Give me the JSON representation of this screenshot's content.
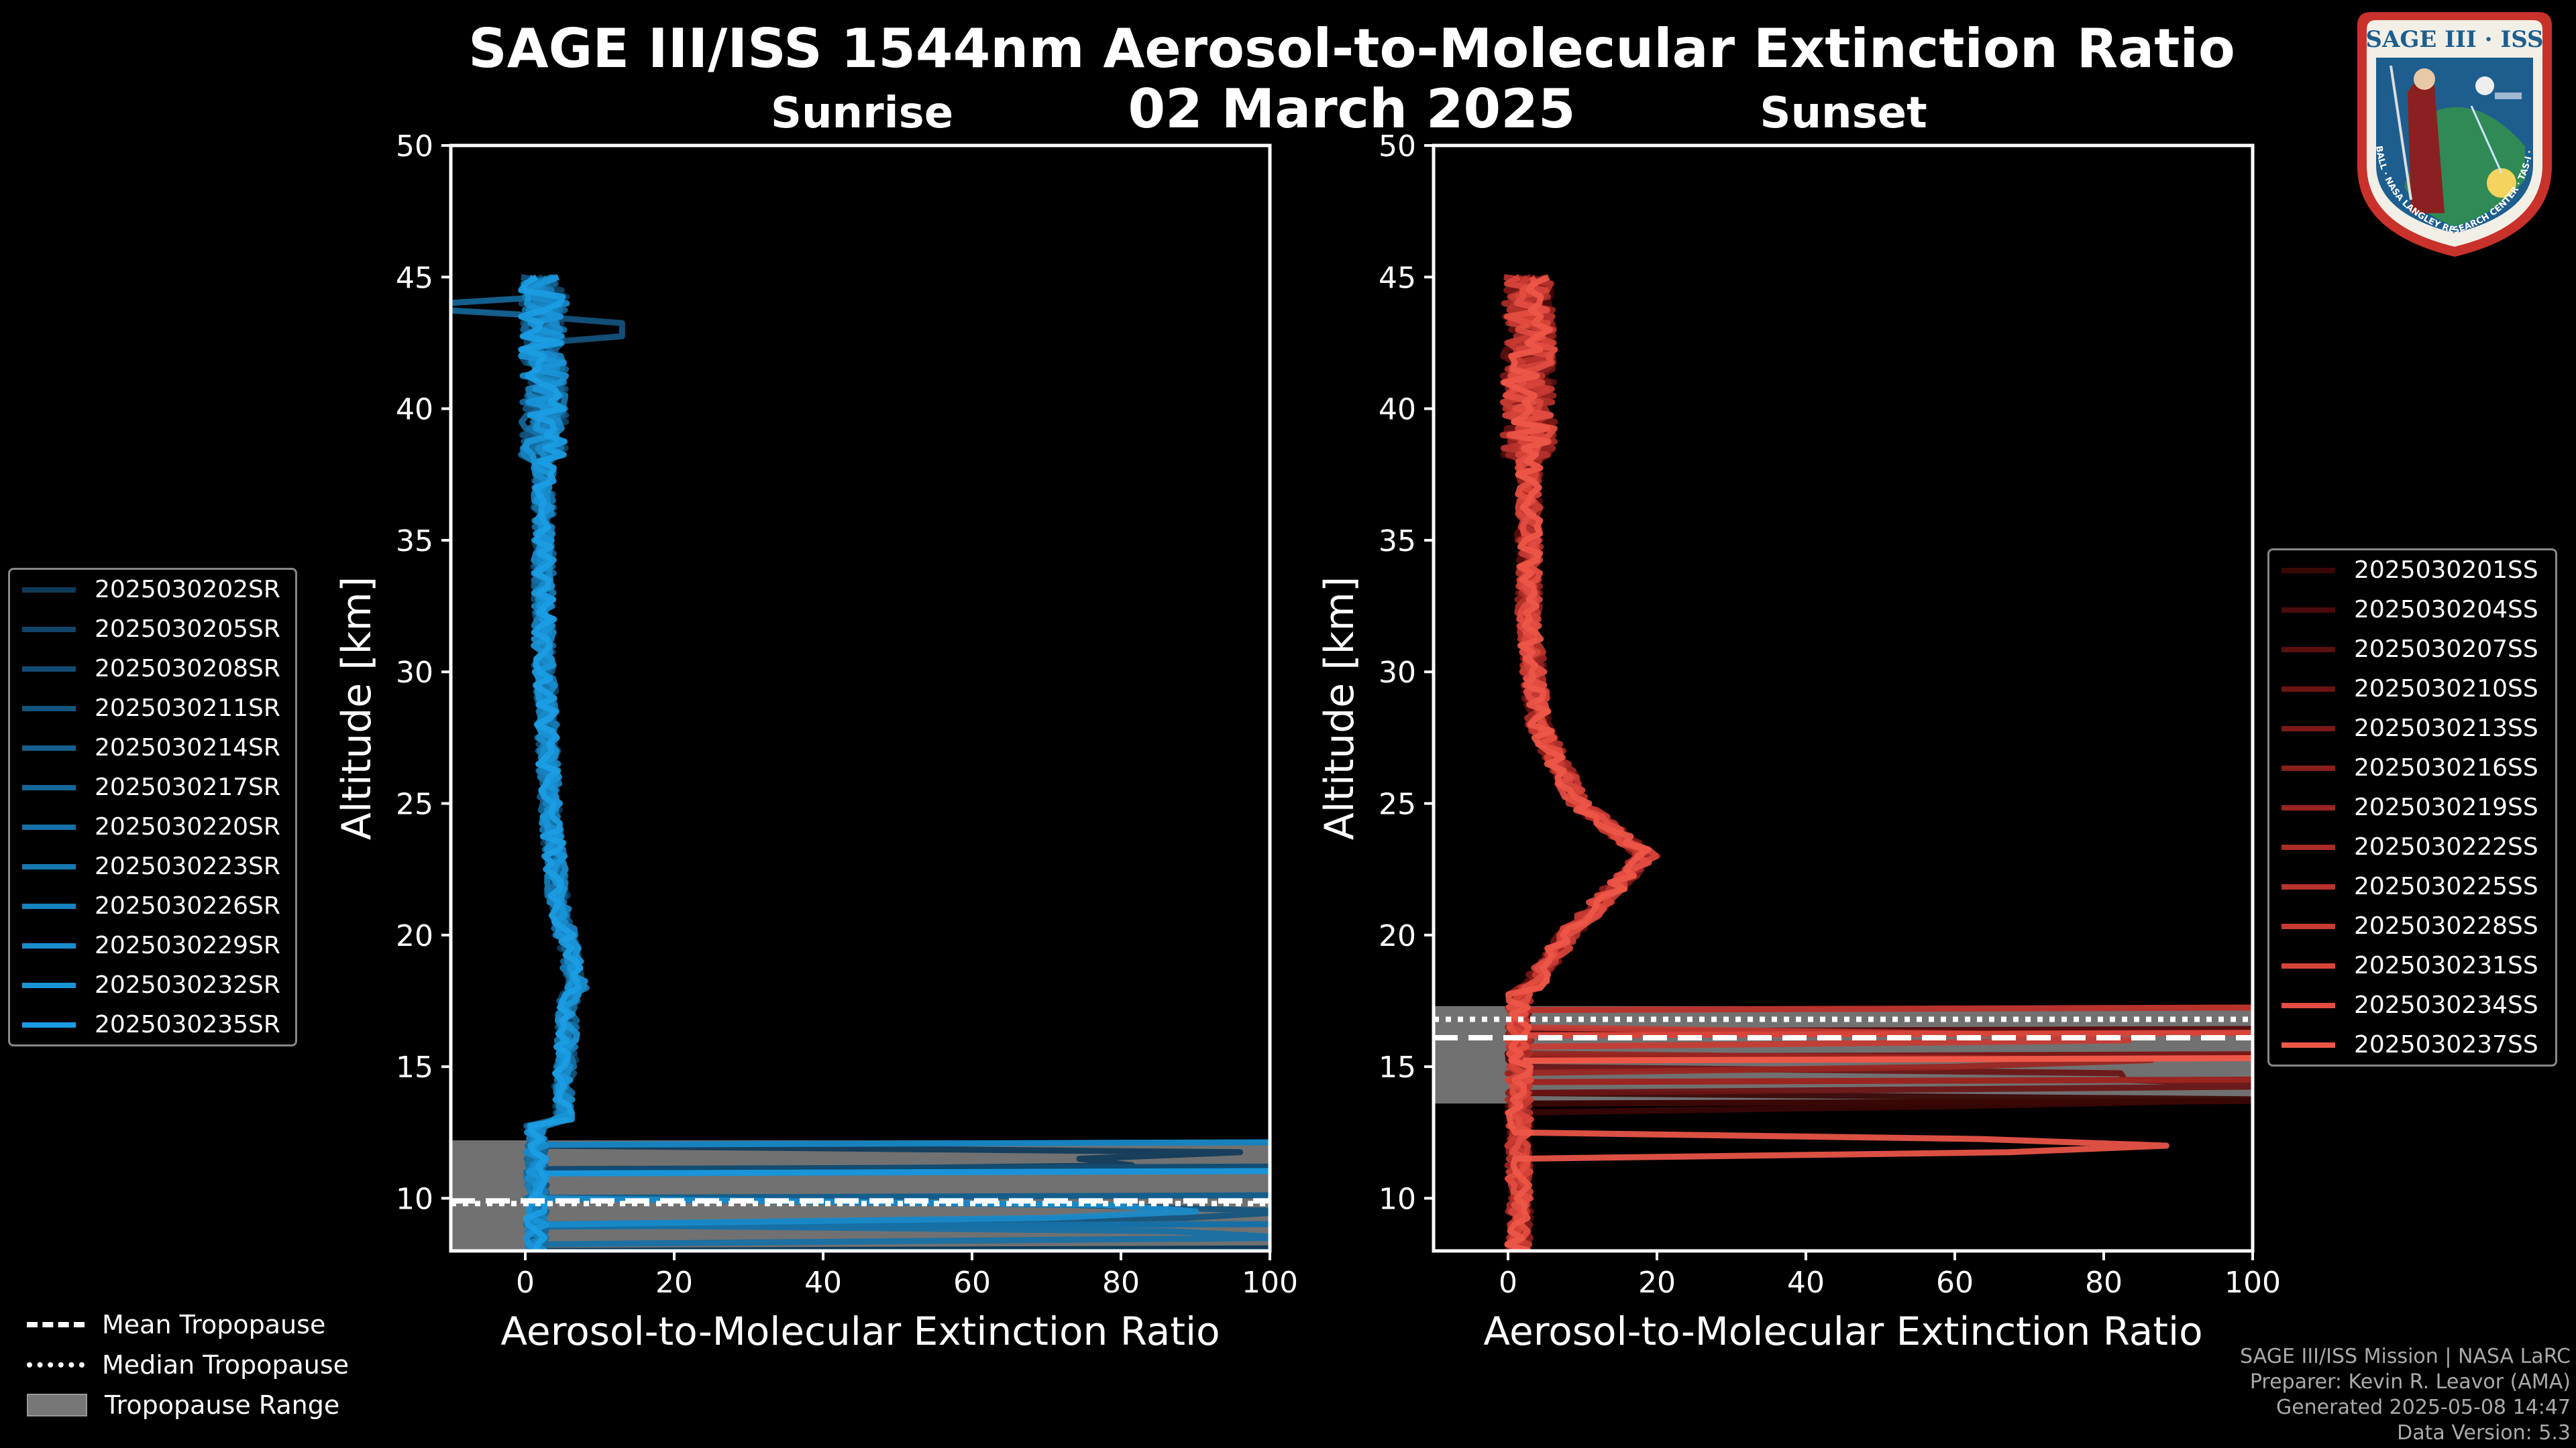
{
  "title": "SAGE III/ISS 1544nm Aerosol-to-Molecular Extinction Ratio",
  "date": "02 March 2025",
  "logo": {
    "text": "SAGE III · ISS",
    "ring_text": "BALL · NASA LANGLEY RESEARCH CENTER · TAS-I · ESA"
  },
  "chart_data": [
    {
      "type": "line",
      "subtitle": "Sunrise",
      "xlabel": "Aerosol-to-Molecular Extinction Ratio",
      "ylabel": "Altitude [km]",
      "xlim": [
        -10,
        100
      ],
      "ylim": [
        8,
        50
      ],
      "xticks": [
        0,
        20,
        40,
        60,
        80,
        100
      ],
      "yticks": [
        10,
        15,
        20,
        25,
        30,
        35,
        40,
        45
      ],
      "mean_tropopause_km": 9.9,
      "median_tropopause_km": 9.8,
      "tropopause_range_km": [
        8.0,
        12.2
      ],
      "series": [
        {
          "name": "2025030202SR",
          "color": "#0f3b5a"
        },
        {
          "name": "2025030205SR",
          "color": "#114466"
        },
        {
          "name": "2025030208SR",
          "color": "#124c72"
        },
        {
          "name": "2025030211SR",
          "color": "#13557f"
        },
        {
          "name": "2025030214SR",
          "color": "#145e8c"
        },
        {
          "name": "2025030217SR",
          "color": "#156799"
        },
        {
          "name": "2025030220SR",
          "color": "#1670a6"
        },
        {
          "name": "2025030223SR",
          "color": "#1779b2"
        },
        {
          "name": "2025030226SR",
          "color": "#1882bf"
        },
        {
          "name": "2025030229SR",
          "color": "#198bcb"
        },
        {
          "name": "2025030232SR",
          "color": "#1a94d8"
        },
        {
          "name": "2025030235SR",
          "color": "#1b9de4"
        }
      ]
    },
    {
      "type": "line",
      "subtitle": "Sunset",
      "xlabel": "Aerosol-to-Molecular Extinction Ratio",
      "ylabel": "Altitude [km]",
      "xlim": [
        -10,
        100
      ],
      "ylim": [
        8,
        50
      ],
      "xticks": [
        0,
        20,
        40,
        60,
        80,
        100
      ],
      "yticks": [
        10,
        15,
        20,
        25,
        30,
        35,
        40,
        45
      ],
      "mean_tropopause_km": 16.1,
      "median_tropopause_km": 16.8,
      "tropopause_range_km": [
        13.6,
        17.3
      ],
      "series": [
        {
          "name": "2025030201SS",
          "color": "#3a0707"
        },
        {
          "name": "2025030204SS",
          "color": "#4a0b0b"
        },
        {
          "name": "2025030207SS",
          "color": "#5a0f0f"
        },
        {
          "name": "2025030210SS",
          "color": "#6a1413"
        },
        {
          "name": "2025030213SS",
          "color": "#7a1917"
        },
        {
          "name": "2025030216SS",
          "color": "#8a1f1c"
        },
        {
          "name": "2025030219SS",
          "color": "#9a2521"
        },
        {
          "name": "2025030222SS",
          "color": "#aa2c27"
        },
        {
          "name": "2025030225SS",
          "color": "#b9332d"
        },
        {
          "name": "2025030228SS",
          "color": "#c83b33"
        },
        {
          "name": "2025030231SS",
          "color": "#d7443a"
        },
        {
          "name": "2025030234SS",
          "color": "#e34d41"
        },
        {
          "name": "2025030237SS",
          "color": "#ee5748"
        }
      ]
    }
  ],
  "bottom_legend": {
    "mean": "Mean Tropopause",
    "median": "Median Tropopause",
    "range": "Tropopause Range"
  },
  "footer": {
    "line1": "SAGE III/ISS Mission | NASA LaRC",
    "line2": "Preparer: Kevin R. Leavor (AMA)",
    "line3": "Generated 2025-05-08 14:47",
    "line4": "Data Version: 5.3"
  }
}
